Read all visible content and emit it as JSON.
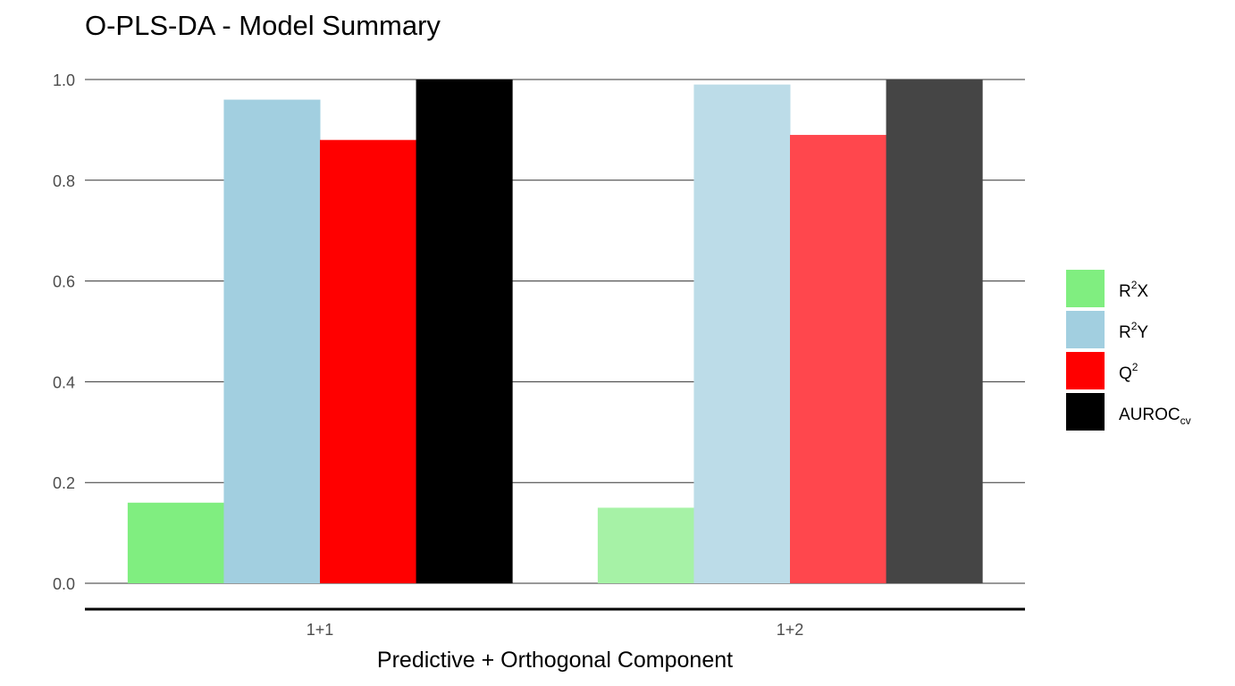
{
  "chart_data": {
    "type": "bar",
    "title": "O-PLS-DA  - Model Summary",
    "xlabel": "Predictive + Orthogonal Component",
    "ylabel": "",
    "ylim": [
      0,
      1.0
    ],
    "yticks": [
      "0.0",
      "0.2",
      "0.4",
      "0.6",
      "0.8",
      "1.0"
    ],
    "ytick_values": [
      0,
      0.2,
      0.4,
      0.6,
      0.8,
      1.0
    ],
    "grid": "horizontal",
    "legend_position": "right",
    "categories": [
      "1+1",
      "1+2"
    ],
    "series": [
      {
        "name": "R2X",
        "legend_main": "R",
        "legend_sup": "2",
        "legend_suffix": "X",
        "legend_sub": "",
        "values": [
          0.16,
          0.15
        ],
        "colors": [
          "#80ee80",
          "#a6f2a6"
        ]
      },
      {
        "name": "R2Y",
        "legend_main": "R",
        "legend_sup": "2",
        "legend_suffix": "Y",
        "legend_sub": "",
        "values": [
          0.96,
          0.99
        ],
        "colors": [
          "#a2cfe0",
          "#bcdce8"
        ]
      },
      {
        "name": "Q2",
        "legend_main": "Q",
        "legend_sup": "2",
        "legend_suffix": "",
        "legend_sub": "",
        "values": [
          0.88,
          0.89
        ],
        "colors": [
          "#ff0000",
          "#ff474d"
        ]
      },
      {
        "name": "AUROCcv",
        "legend_main": "AUROC",
        "legend_sup": "",
        "legend_suffix": "",
        "legend_sub": "cv",
        "values": [
          1.0,
          1.0
        ],
        "colors": [
          "#000000",
          "#454545"
        ]
      }
    ]
  }
}
